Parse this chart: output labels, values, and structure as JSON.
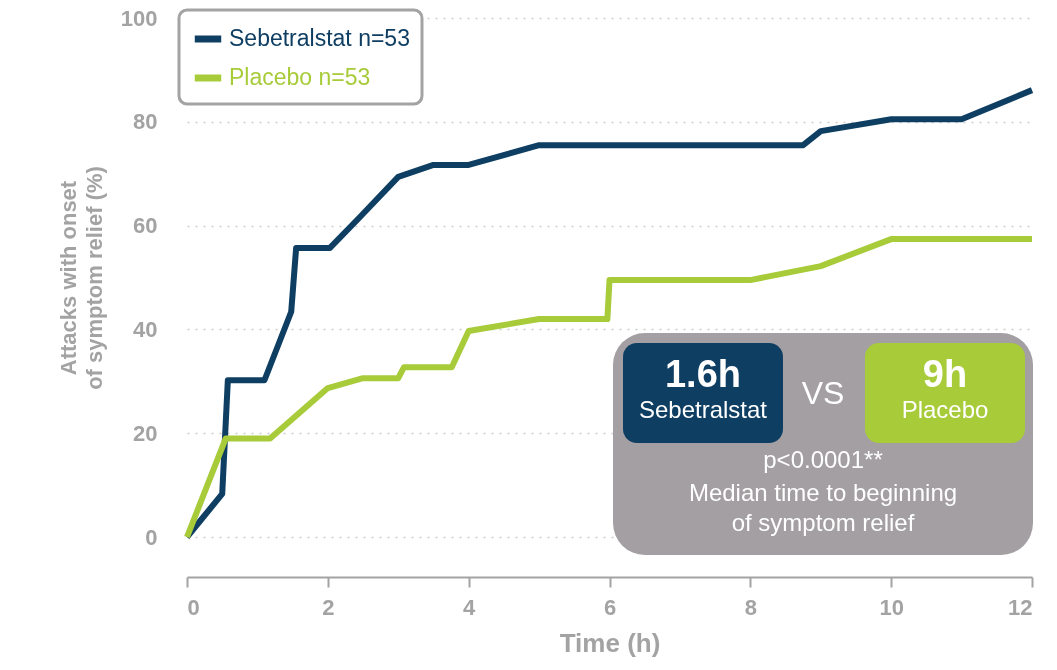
{
  "chart_data": {
    "type": "line",
    "xlabel": "Time (h)",
    "ylabel": "Attacks with onset\nof symptom relief (%)",
    "xlim": [
      0,
      12
    ],
    "xticks": [
      0,
      2,
      4,
      6,
      8,
      10,
      12
    ],
    "ylim": [
      0,
      100
    ],
    "yticks": [
      0,
      20,
      40,
      60,
      80,
      100
    ],
    "grid": "y",
    "legend": "top left",
    "line_style": "solid",
    "series": [
      {
        "name": "Sebetralstat n=53",
        "color": "#0f3e63",
        "x": [
          0,
          0.5,
          0.58,
          1.1,
          1.48,
          1.55,
          2.03,
          2.46,
          3.0,
          3.5,
          4.0,
          5.0,
          8.75,
          9.0,
          10.0,
          11.0,
          12.0
        ],
        "values": [
          0,
          8.3,
          30.2,
          30.2,
          43.4,
          55.7,
          55.7,
          61.7,
          69.4,
          71.7,
          71.7,
          75.5,
          75.5,
          78.2,
          80.5,
          80.5,
          86.1
        ]
      },
      {
        "name": "Placebo n=53",
        "color": "#a8cb3a",
        "x": [
          0,
          0.55,
          1.18,
          2.0,
          2.5,
          3.0,
          3.08,
          3.76,
          4.0,
          5.0,
          5.97,
          6.0,
          8.0,
          9.0,
          10.0,
          12.0
        ],
        "values": [
          0,
          19,
          19,
          28.7,
          30.6,
          30.6,
          32.7,
          32.7,
          39.7,
          42,
          42,
          49.5,
          49.5,
          52.2,
          57.4,
          57.4
        ]
      }
    ],
    "annotations": [
      "1.6h",
      "Sebetralstat",
      "VS",
      "9h",
      "Placebo",
      "p<0.0001**",
      "Median time to beginning\nof symptom relief"
    ]
  }
}
